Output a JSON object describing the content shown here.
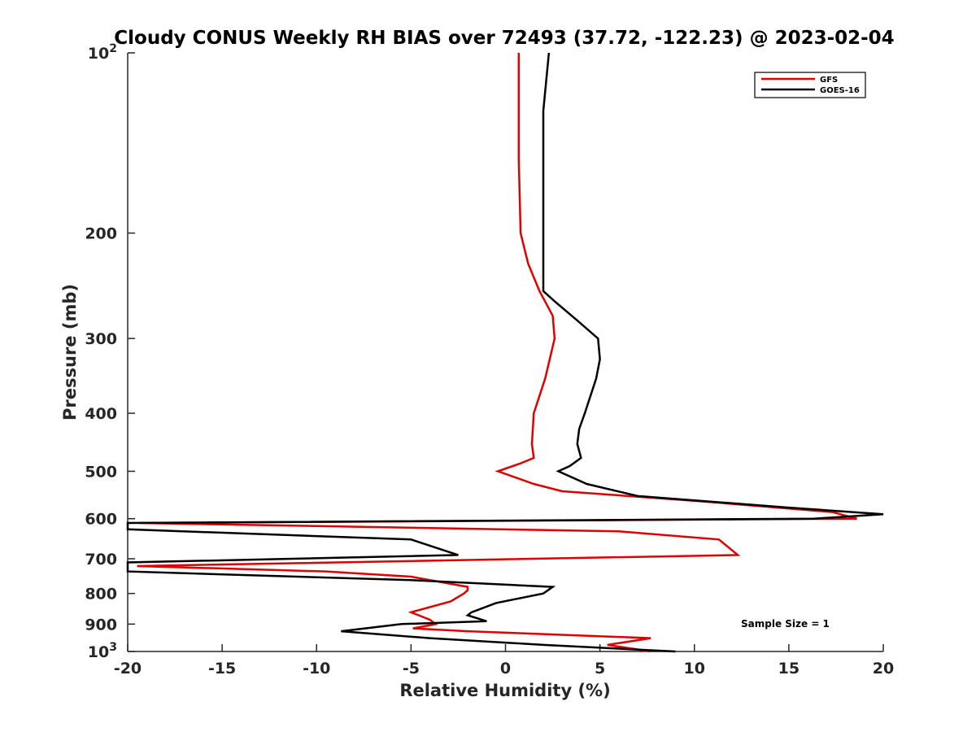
{
  "chart_data": {
    "type": "line",
    "title": "Cloudy CONUS Weekly RH BIAS over 72493 (37.72, -122.23) @ 2023-02-04",
    "xlabel": "Relative Humidity (%)",
    "ylabel": "Pressure (mb)",
    "xlim": [
      -20,
      20
    ],
    "ylim": [
      100,
      1000
    ],
    "y_scale": "log",
    "y_reversed": true,
    "grid": false,
    "legend_position": "top-right",
    "x_ticks": [
      "-20",
      "-15",
      "-10",
      "-5",
      "0",
      "5",
      "10",
      "15",
      "20"
    ],
    "y_ticks": [
      {
        "value": 100,
        "base": "10",
        "exp": "2"
      },
      {
        "value": 200,
        "label": "200"
      },
      {
        "value": 300,
        "label": "300"
      },
      {
        "value": 400,
        "label": "400"
      },
      {
        "value": 500,
        "label": "500"
      },
      {
        "value": 600,
        "label": "600"
      },
      {
        "value": 700,
        "label": "700"
      },
      {
        "value": 800,
        "label": "800"
      },
      {
        "value": 900,
        "label": "900"
      },
      {
        "value": 1000,
        "base": "10",
        "exp": "3"
      }
    ],
    "series": [
      {
        "name": "GFS",
        "color": "#e00000",
        "points": [
          {
            "x": 0.7,
            "p": 100
          },
          {
            "x": 0.7,
            "p": 125
          },
          {
            "x": 0.7,
            "p": 150
          },
          {
            "x": 0.8,
            "p": 200
          },
          {
            "x": 1.2,
            "p": 225
          },
          {
            "x": 1.8,
            "p": 250
          },
          {
            "x": 2.5,
            "p": 275
          },
          {
            "x": 2.6,
            "p": 300
          },
          {
            "x": 2.1,
            "p": 350
          },
          {
            "x": 1.5,
            "p": 400
          },
          {
            "x": 1.4,
            "p": 450
          },
          {
            "x": 1.5,
            "p": 475
          },
          {
            "x": 0.8,
            "p": 485
          },
          {
            "x": -0.4,
            "p": 500
          },
          {
            "x": 1.5,
            "p": 525
          },
          {
            "x": 3.0,
            "p": 540
          },
          {
            "x": 10.0,
            "p": 560
          },
          {
            "x": 17.3,
            "p": 585
          },
          {
            "x": 18.6,
            "p": 600
          },
          {
            "x": -19.4,
            "p": 610
          },
          {
            "x": 6.0,
            "p": 630
          },
          {
            "x": 11.3,
            "p": 650
          },
          {
            "x": 12.3,
            "p": 690
          },
          {
            "x": -19.5,
            "p": 720
          },
          {
            "x": -9.5,
            "p": 735
          },
          {
            "x": -5.0,
            "p": 750
          },
          {
            "x": -2.0,
            "p": 780
          },
          {
            "x": -2.0,
            "p": 790
          },
          {
            "x": -2.2,
            "p": 800
          },
          {
            "x": -2.9,
            "p": 825
          },
          {
            "x": -5.0,
            "p": 860
          },
          {
            "x": -4.0,
            "p": 885
          },
          {
            "x": -3.7,
            "p": 900
          },
          {
            "x": -4.9,
            "p": 915
          },
          {
            "x": -2.0,
            "p": 925
          },
          {
            "x": 7.7,
            "p": 950
          },
          {
            "x": 5.4,
            "p": 975
          },
          {
            "x": 7.7,
            "p": 1000
          }
        ]
      },
      {
        "name": "GOES-16",
        "color": "#000000",
        "points": [
          {
            "x": 2.3,
            "p": 100
          },
          {
            "x": 2.0,
            "p": 125
          },
          {
            "x": 2.0,
            "p": 150
          },
          {
            "x": 2.0,
            "p": 200
          },
          {
            "x": 2.0,
            "p": 225
          },
          {
            "x": 2.0,
            "p": 250
          },
          {
            "x": 2.6,
            "p": 260
          },
          {
            "x": 3.8,
            "p": 280
          },
          {
            "x": 4.9,
            "p": 300
          },
          {
            "x": 5.0,
            "p": 325
          },
          {
            "x": 4.8,
            "p": 350
          },
          {
            "x": 4.2,
            "p": 400
          },
          {
            "x": 3.9,
            "p": 425
          },
          {
            "x": 3.8,
            "p": 450
          },
          {
            "x": 4.0,
            "p": 475
          },
          {
            "x": 3.4,
            "p": 490
          },
          {
            "x": 2.8,
            "p": 500
          },
          {
            "x": 4.3,
            "p": 525
          },
          {
            "x": 7.0,
            "p": 550
          },
          {
            "x": 15.0,
            "p": 575
          },
          {
            "x": 20.0,
            "p": 590
          },
          {
            "x": 16.3,
            "p": 600
          },
          {
            "x": -20.0,
            "p": 610
          },
          {
            "x": -20.0,
            "p": 625
          },
          {
            "x": -5.0,
            "p": 650
          },
          {
            "x": -2.5,
            "p": 690
          },
          {
            "x": -20.0,
            "p": 710
          },
          {
            "x": -20.0,
            "p": 735
          },
          {
            "x": -5.0,
            "p": 760
          },
          {
            "x": 2.5,
            "p": 780
          },
          {
            "x": 2.0,
            "p": 800
          },
          {
            "x": -0.5,
            "p": 830
          },
          {
            "x": -1.8,
            "p": 860
          },
          {
            "x": -2.0,
            "p": 870
          },
          {
            "x": -1.0,
            "p": 890
          },
          {
            "x": -5.5,
            "p": 900
          },
          {
            "x": -8.7,
            "p": 925
          },
          {
            "x": -4.0,
            "p": 950
          },
          {
            "x": 2.0,
            "p": 975
          },
          {
            "x": 9.0,
            "p": 1000
          }
        ]
      }
    ],
    "annotations": [
      "Sample Size = 1"
    ]
  }
}
